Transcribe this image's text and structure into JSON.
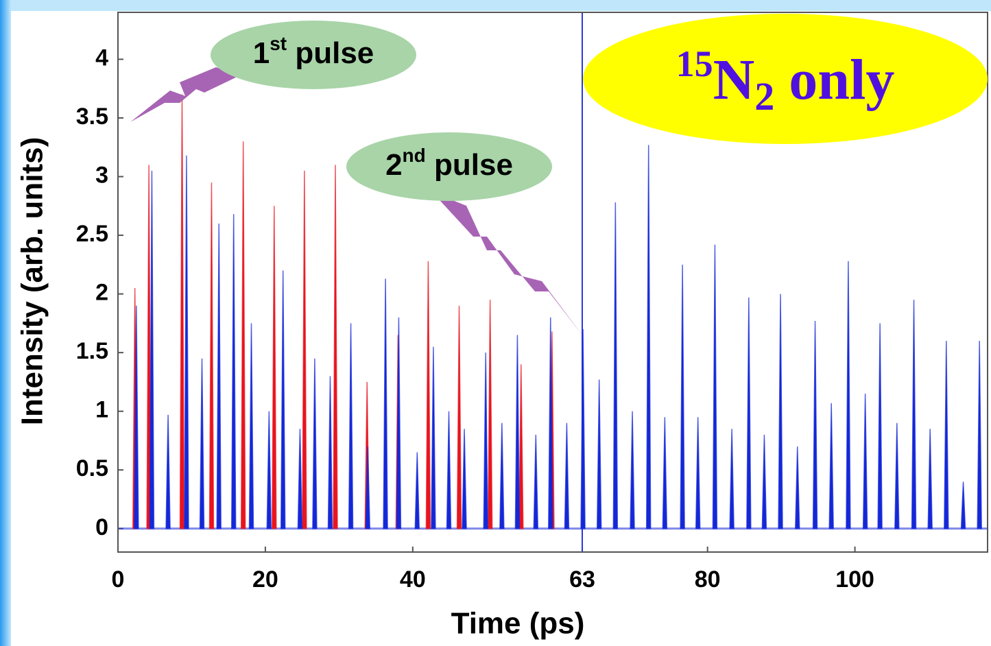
{
  "chart_data": {
    "type": "spike",
    "x_label": "Time (ps)",
    "y_label": "Intensity (arb. units)",
    "xlim": [
      0,
      118
    ],
    "xticks": [
      0,
      20,
      40,
      63,
      80,
      100
    ],
    "ylim": [
      -0.2,
      4.4
    ],
    "yticks": [
      0,
      0.5,
      1,
      1.5,
      2,
      2.5,
      3,
      3.5,
      4
    ],
    "pulse_markers": [
      0,
      63
    ],
    "series": [
      {
        "color": "#e8141e",
        "x": [
          2.3,
          4.2,
          8.7,
          12.7,
          17.0,
          21.2,
          25.3,
          29.5,
          33.8,
          38.0,
          42.1,
          46.3,
          50.5,
          54.7,
          58.9
        ],
        "values": [
          2.05,
          3.1,
          3.7,
          2.95,
          3.3,
          2.75,
          3.05,
          3.1,
          1.25,
          1.65,
          2.28,
          1.9,
          1.95,
          1.4,
          1.68
        ]
      },
      {
        "color": "#1428d8",
        "x": [
          2.5,
          4.6,
          6.8,
          9.3,
          11.4,
          13.7,
          15.7,
          18.1,
          20.5,
          22.4,
          24.7,
          26.7,
          28.8,
          31.6,
          33.9,
          36.3,
          38.1,
          40.6,
          42.8,
          44.9,
          47.0,
          49.9,
          52.1,
          54.2,
          56.7,
          58.7,
          60.9,
          63.1,
          65.3,
          67.5,
          69.8,
          72.0,
          74.2,
          76.6,
          78.7,
          81.0,
          83.3,
          85.6,
          87.7,
          89.9,
          92.2,
          94.6,
          96.8,
          99.1,
          101.4,
          103.4,
          105.7,
          108.0,
          110.2,
          112.4,
          114.7,
          116.9
        ],
        "values": [
          1.9,
          3.05,
          0.97,
          3.18,
          1.45,
          2.6,
          2.68,
          1.75,
          1.0,
          2.2,
          0.85,
          1.45,
          1.3,
          1.75,
          0.7,
          2.13,
          1.8,
          0.65,
          1.55,
          1.0,
          0.85,
          1.5,
          0.9,
          1.65,
          0.8,
          1.8,
          0.9,
          1.7,
          1.27,
          2.78,
          1.0,
          3.27,
          0.95,
          2.25,
          0.95,
          2.42,
          0.85,
          1.97,
          0.8,
          2.0,
          0.7,
          1.77,
          1.07,
          2.28,
          1.15,
          1.75,
          0.9,
          1.95,
          0.85,
          1.6,
          0.4,
          1.6
        ]
      }
    ],
    "annotations": [
      {
        "base": "1",
        "sup": "st",
        "rest": " pulse"
      },
      {
        "base": "2",
        "sup": "nd",
        "rest": " pulse"
      }
    ],
    "label": {
      "sup": "15",
      "base": "N",
      "sub": "2",
      "rest": " only"
    }
  }
}
